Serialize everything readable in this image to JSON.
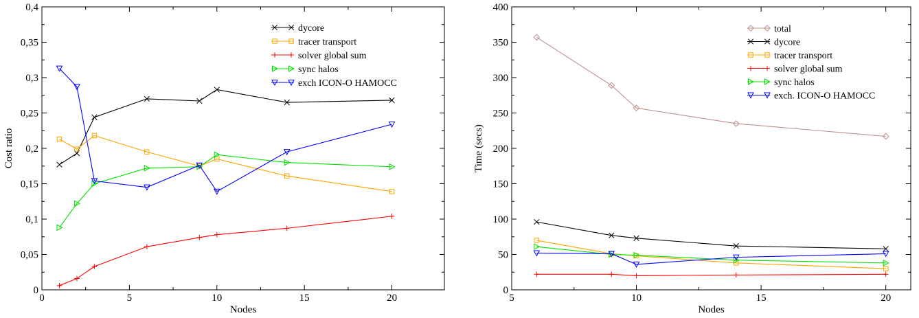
{
  "chart_data": [
    {
      "type": "line",
      "xlabel": "Nodes",
      "ylabel": "Cost ratio",
      "xlim": [
        0,
        23
      ],
      "ylim": [
        0,
        0.4
      ],
      "xticks": [
        0,
        5,
        10,
        15,
        20
      ],
      "yticks": [
        0,
        0.05,
        0.1,
        0.15,
        0.2,
        0.25,
        0.3,
        0.35,
        0.4
      ],
      "xtick_labels": [
        "0",
        "5",
        "10",
        "15",
        "20"
      ],
      "ytick_labels": [
        "0",
        "0,05",
        "0,1",
        "0,15",
        "0,2",
        "0,25",
        "0,3",
        "0,35",
        "0,4"
      ],
      "grid": false,
      "legend_position": "top-right",
      "series": [
        {
          "name": "dycore",
          "color": "#000000",
          "marker": "x",
          "x": [
            1,
            2,
            3,
            6,
            9,
            10,
            14,
            20
          ],
          "y": [
            0.177,
            0.193,
            0.244,
            0.27,
            0.267,
            0.283,
            0.265,
            0.268
          ]
        },
        {
          "name": "tracer transport",
          "color": "#ffa500",
          "marker": "square",
          "x": [
            1,
            2,
            3,
            6,
            9,
            10,
            14,
            20
          ],
          "y": [
            0.213,
            0.199,
            0.218,
            0.195,
            0.175,
            0.185,
            0.161,
            0.139
          ]
        },
        {
          "name": "solver global sum",
          "color": "#ff0000",
          "marker": "plus",
          "x": [
            1,
            2,
            3,
            6,
            9,
            10,
            14,
            20
          ],
          "y": [
            0.006,
            0.016,
            0.033,
            0.061,
            0.074,
            0.078,
            0.087,
            0.104
          ]
        },
        {
          "name": "sync halos",
          "color": "#00e000",
          "marker": "triangle-right",
          "x": [
            1,
            2,
            3,
            6,
            9,
            10,
            14,
            20
          ],
          "y": [
            0.088,
            0.122,
            0.15,
            0.172,
            0.174,
            0.191,
            0.18,
            0.174
          ]
        },
        {
          "name": "exch ICON-O HAMOCC",
          "color": "#0000ff",
          "marker": "triangle-down",
          "x": [
            1,
            2,
            3,
            6,
            9,
            10,
            14,
            20
          ],
          "y": [
            0.313,
            0.287,
            0.154,
            0.145,
            0.176,
            0.139,
            0.195,
            0.234
          ]
        }
      ]
    },
    {
      "type": "line",
      "xlabel": "Nodes",
      "ylabel": "Time (secs)",
      "xlim": [
        5,
        21
      ],
      "ylim": [
        0,
        400
      ],
      "xticks": [
        5,
        10,
        15,
        20
      ],
      "yticks": [
        0,
        50,
        100,
        150,
        200,
        250,
        300,
        350,
        400
      ],
      "xtick_labels": [
        "5",
        "10",
        "15",
        "20"
      ],
      "ytick_labels": [
        "0",
        "50",
        "100",
        "150",
        "200",
        "250",
        "300",
        "350",
        "400"
      ],
      "grid": false,
      "legend_position": "top-right",
      "series": [
        {
          "name": "total",
          "color": "#bc8f8f",
          "marker": "diamond",
          "x": [
            6,
            9,
            10,
            14,
            20
          ],
          "y": [
            357,
            289,
            257,
            235,
            217
          ]
        },
        {
          "name": "dycore",
          "color": "#000000",
          "marker": "x",
          "x": [
            6,
            9,
            10,
            14,
            20
          ],
          "y": [
            96,
            77,
            73,
            62,
            58
          ]
        },
        {
          "name": "tracer transport",
          "color": "#ffa500",
          "marker": "square",
          "x": [
            6,
            9,
            10,
            14,
            20
          ],
          "y": [
            70,
            51,
            48,
            38,
            30
          ]
        },
        {
          "name": "solver global sum",
          "color": "#ff0000",
          "marker": "plus",
          "x": [
            6,
            9,
            10,
            14,
            20
          ],
          "y": [
            22,
            22,
            20,
            21,
            22
          ]
        },
        {
          "name": "sync halos",
          "color": "#00e000",
          "marker": "triangle-right",
          "x": [
            6,
            9,
            10,
            14,
            20
          ],
          "y": [
            61,
            50,
            49,
            42,
            38
          ]
        },
        {
          "name": "exch. ICON-O HAMOCC",
          "color": "#0000ff",
          "marker": "triangle-down",
          "x": [
            6,
            9,
            10,
            14,
            20
          ],
          "y": [
            52,
            51,
            36,
            46,
            51
          ]
        }
      ]
    }
  ]
}
